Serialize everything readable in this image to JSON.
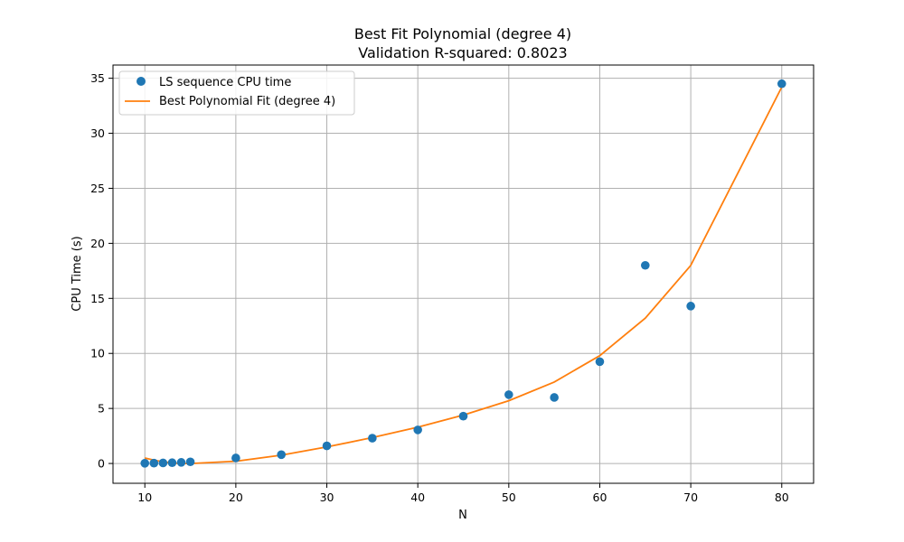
{
  "chart_data": {
    "type": "scatter",
    "title": "Best Fit Polynomial (degree 4)",
    "subtitle": "Validation R-squared: 0.8023",
    "xlabel": "N",
    "ylabel": "CPU Time (s)",
    "xlim": [
      6.5,
      83.5
    ],
    "ylim": [
      -1.8,
      36.2
    ],
    "xticks": [
      10,
      20,
      30,
      40,
      50,
      60,
      70,
      80
    ],
    "yticks": [
      0,
      5,
      10,
      15,
      20,
      25,
      30,
      35
    ],
    "grid": true,
    "legend_position": "top-left",
    "series": [
      {
        "name": "LS sequence CPU time",
        "kind": "scatter",
        "color": "#1f77b4",
        "x": [
          10,
          11,
          12,
          13,
          14,
          15,
          20,
          25,
          30,
          35,
          40,
          45,
          50,
          55,
          60,
          65,
          70,
          80
        ],
        "y": [
          0.02,
          0.03,
          0.05,
          0.07,
          0.1,
          0.15,
          0.5,
          0.8,
          1.6,
          2.3,
          3.05,
          4.3,
          6.25,
          6.0,
          9.25,
          18.0,
          14.3,
          34.5
        ]
      },
      {
        "name": "Best Polynomial Fit (degree 4)",
        "kind": "line",
        "color": "#ff7f0e",
        "x": [
          10,
          11,
          12,
          13,
          14,
          15,
          20,
          25,
          30,
          35,
          40,
          45,
          50,
          55,
          60,
          65,
          70,
          80
        ],
        "y": [
          0.5,
          0.3,
          0.15,
          0.05,
          0.0,
          0.0,
          0.2,
          0.75,
          1.5,
          2.35,
          3.3,
          4.4,
          5.7,
          7.4,
          9.8,
          13.2,
          18.0,
          34.2
        ]
      }
    ]
  }
}
